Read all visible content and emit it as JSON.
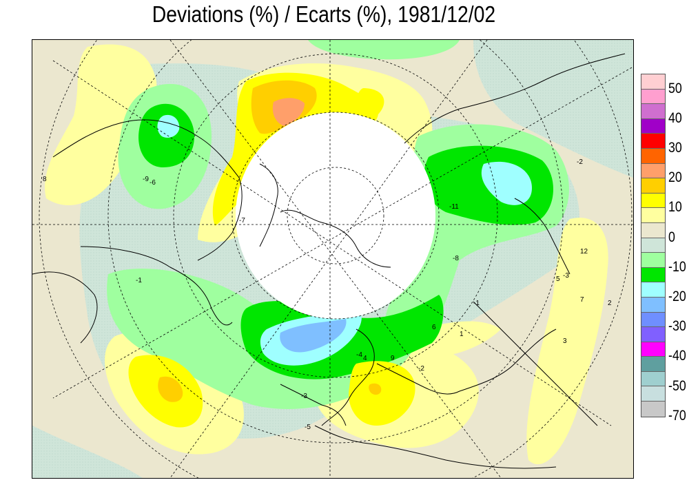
{
  "title": "Deviations (%) / Ecarts (%), 1981/12/02",
  "legend": {
    "colors": [
      "#ffcfd2",
      "#ff9fcf",
      "#cf6fcf",
      "#a000c8",
      "#ff0000",
      "#ff6400",
      "#ff9f6a",
      "#ffcf00",
      "#ffff00",
      "#ffff9f",
      "#ebe7cf",
      "#cfe5d9",
      "#9fff9f",
      "#00e600",
      "#9fffff",
      "#7fbfff",
      "#6f8fff",
      "#8060ff",
      "#ff00ff",
      "#5f9f9f",
      "#9fcfcf",
      "#c8dfdf",
      "#c8c8c8"
    ],
    "labels": [
      "50",
      "40",
      "30",
      "20",
      "10",
      "0",
      "-10",
      "-20",
      "-30",
      "-40",
      "-50",
      "-70"
    ]
  },
  "map_labels": [
    "-1",
    "-1",
    "-2",
    "-2",
    "-3",
    "-3",
    "-4",
    "-5",
    "-6",
    "-7",
    "-8",
    "-9",
    "-11",
    "1",
    "2",
    "3",
    "4",
    "5",
    "6",
    "7",
    "8",
    "9",
    "12"
  ]
}
